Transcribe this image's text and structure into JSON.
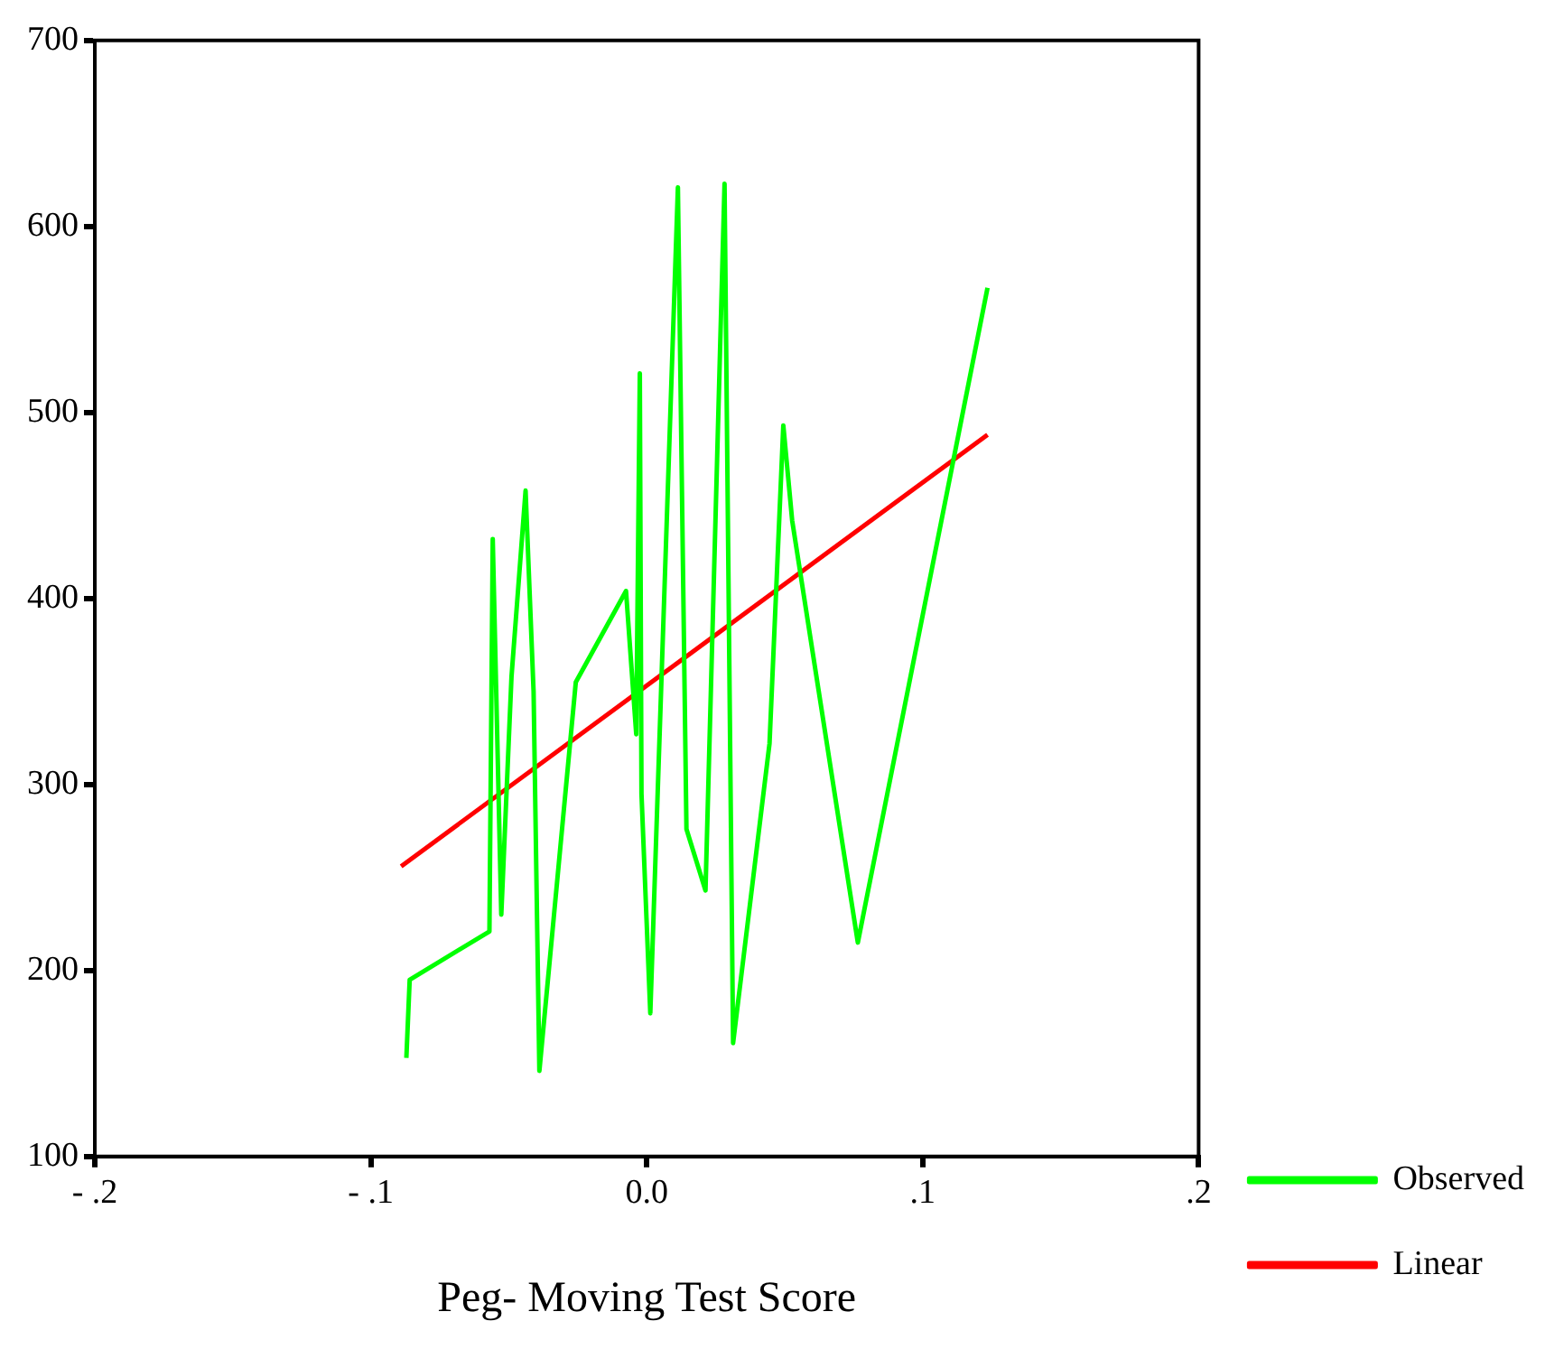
{
  "chart_data": {
    "type": "line",
    "xlabel": "Peg- Moving Test Score",
    "xlim": [
      -0.2,
      0.2
    ],
    "xticks": [
      {
        "value": -0.2,
        "label": "- .2"
      },
      {
        "value": -0.1,
        "label": "- .1"
      },
      {
        "value": 0,
        "label": "0.0"
      },
      {
        "value": 0.1,
        "label": ".1"
      },
      {
        "value": 0.2,
        "label": ".2"
      }
    ],
    "ylim": [
      100,
      700
    ],
    "yticks": [
      100,
      200,
      300,
      400,
      500,
      600,
      700
    ],
    "grid": false,
    "legend": "bottom right",
    "series": [
      {
        "name": "Observed",
        "color": "#00ff00",
        "x": [
          -0.0871,
          -0.0859,
          -0.057,
          -0.0558,
          -0.0527,
          -0.049,
          -0.0439,
          -0.041,
          -0.0389,
          -0.0257,
          -0.0075,
          -0.0038,
          -0.0025,
          -0.0019,
          0.0013,
          0.0113,
          0.0144,
          0.0213,
          0.0282,
          0.0313,
          0.0445,
          0.0495,
          0.0527,
          0.0765,
          0.1235
        ],
        "values": [
          153,
          195,
          221,
          432,
          230,
          358,
          458,
          350,
          146,
          355,
          404,
          327,
          521,
          295,
          177,
          621,
          276,
          243,
          623,
          161,
          322,
          493,
          442,
          215,
          567
        ]
      },
      {
        "name": "Linear",
        "color": "#ff0000",
        "x": [
          -0.089,
          0.1235
        ],
        "values": [
          256,
          488
        ]
      }
    ]
  }
}
